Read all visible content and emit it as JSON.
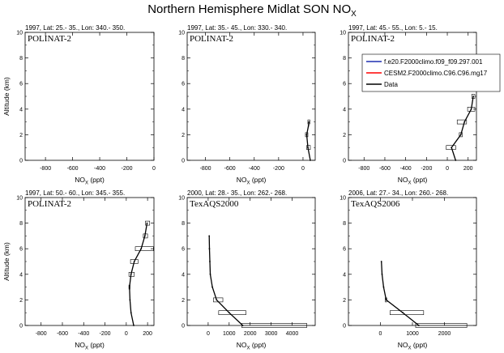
{
  "figure": {
    "title": "Northern Hemisphere Midlat SON NO",
    "title_sub": "X"
  },
  "legend": {
    "placement": "inside panel 3, upper right",
    "entries": [
      {
        "label": "f.e20.F2000climo.f09_f09.297.001",
        "color": "#1f2fb0"
      },
      {
        "label": "CESM2.F2000climo.C96.C96.mg17",
        "color": "#ff0000"
      },
      {
        "label": "Data",
        "color": "#000000"
      }
    ]
  },
  "chart_data": [
    {
      "type": "line",
      "title": "1997, Lat: 25.- 35., Lon: 340.- 350.",
      "campaign": "POLINAT-2",
      "xlabel": "NO",
      "xlabel_sub": "X",
      "xlabel_unit": " (ppt)",
      "ylabel": "Altitude (km)",
      "xlim": [
        -950,
        0
      ],
      "ylim": [
        0,
        10
      ],
      "xticks": [
        -800,
        -600,
        -400,
        -200,
        0
      ],
      "yticks": [
        0,
        2,
        4,
        6,
        8,
        10
      ],
      "series": [
        {
          "name": "Data",
          "color": "#000000",
          "x": [],
          "y": []
        }
      ],
      "boxes": []
    },
    {
      "type": "line",
      "title": "1997, Lat: 35.- 45., Lon: 330.- 340.",
      "campaign": "POLINAT-2",
      "xlabel": "NO",
      "xlabel_sub": "X",
      "xlabel_unit": " (ppt)",
      "ylabel": "",
      "xlim": [
        -950,
        100
      ],
      "ylim": [
        0,
        10
      ],
      "xticks": [
        -800,
        -600,
        -400,
        -200,
        0
      ],
      "yticks": [
        0,
        2,
        4,
        6,
        8,
        10
      ],
      "series": [
        {
          "name": "Data",
          "color": "#000000",
          "x": [
            60,
            40,
            30,
            45,
            48
          ],
          "y": [
            0,
            1,
            2,
            2.7,
            3
          ]
        }
      ],
      "boxes": [
        {
          "y": 1,
          "x1": 30,
          "x2": 60
        },
        {
          "y": 2,
          "x1": 20,
          "x2": 40
        },
        {
          "y": 3,
          "x1": 40,
          "x2": 56
        }
      ]
    },
    {
      "type": "line",
      "title": "1997, Lat: 45.- 55., Lon: 5.- 15.",
      "campaign": "POLINAT-2",
      "xlabel": "NO",
      "xlabel_sub": "X",
      "xlabel_unit": " (ppt)",
      "ylabel": "",
      "xlim": [
        -950,
        280
      ],
      "ylim": [
        0,
        10
      ],
      "xticks": [
        -800,
        -600,
        -400,
        -200,
        0,
        200
      ],
      "yticks": [
        0,
        2,
        4,
        6,
        8,
        10
      ],
      "series": [
        {
          "name": "Data",
          "color": "#000000",
          "x": [
            80,
            40,
            130,
            165,
            230,
            250
          ],
          "y": [
            0,
            1,
            2,
            3,
            4,
            5
          ]
        }
      ],
      "boxes": [
        {
          "y": 1,
          "x1": -10,
          "x2": 80
        },
        {
          "y": 2,
          "x1": 115,
          "x2": 145
        },
        {
          "y": 3,
          "x1": 95,
          "x2": 185
        },
        {
          "y": 4,
          "x1": 195,
          "x2": 265
        },
        {
          "y": 5,
          "x1": 235,
          "x2": 265
        }
      ]
    },
    {
      "type": "line",
      "title": "1997, Lat: 50.- 60., Lon: 345.- 355.",
      "campaign": "POLINAT-2",
      "xlabel": "NO",
      "xlabel_sub": "X",
      "xlabel_unit": " (ppt)",
      "ylabel": "Altitude (km)",
      "xlim": [
        -950,
        260
      ],
      "ylim": [
        0,
        10
      ],
      "xticks": [
        -800,
        -600,
        -400,
        -200,
        0,
        200
      ],
      "yticks": [
        0,
        2,
        4,
        6,
        8,
        10
      ],
      "series": [
        {
          "name": "Data",
          "color": "#000000",
          "x": [
            70,
            45,
            35,
            30,
            45,
            75,
            140,
            175,
            195
          ],
          "y": [
            0,
            1,
            2,
            3,
            4,
            5,
            6,
            7,
            8
          ]
        }
      ],
      "boxes": [
        {
          "y": 3,
          "x1": 25,
          "x2": 35
        },
        {
          "y": 4,
          "x1": 25,
          "x2": 75
        },
        {
          "y": 5,
          "x1": 40,
          "x2": 110
        },
        {
          "y": 6,
          "x1": 85,
          "x2": 255
        },
        {
          "y": 7,
          "x1": 160,
          "x2": 200
        },
        {
          "y": 8,
          "x1": 180,
          "x2": 220
        }
      ]
    },
    {
      "type": "line",
      "title": "2000, Lat: 28.- 35., Lon: 262.- 268.",
      "campaign": "TexAQS2000",
      "xlabel": "NO",
      "xlabel_sub": "X",
      "xlabel_unit": " (ppt)",
      "ylabel": "",
      "xlim": [
        -1000,
        5100
      ],
      "ylim": [
        0,
        10
      ],
      "xticks": [
        0,
        1000,
        2000,
        3000,
        4000
      ],
      "yticks": [
        0,
        2,
        4,
        6,
        8,
        10
      ],
      "series": [
        {
          "name": "Data",
          "color": "#000000",
          "x": [
            1650,
            1000,
            400,
            200,
            100,
            80,
            60,
            50
          ],
          "y": [
            0,
            1,
            2,
            3,
            4,
            5,
            6,
            7
          ]
        }
      ],
      "boxes": [
        {
          "y": 0,
          "x1": 1600,
          "x2": 4700
        },
        {
          "y": 1,
          "x1": 500,
          "x2": 1800
        },
        {
          "y": 2,
          "x1": 250,
          "x2": 700
        }
      ]
    },
    {
      "type": "line",
      "title": "2006, Lat: 27.- 34., Lon: 260.- 268.",
      "campaign": "TexAQS2006",
      "xlabel": "NO",
      "xlabel_sub": "X",
      "xlabel_unit": " (ppt)",
      "ylabel": "",
      "xlim": [
        -1000,
        3000
      ],
      "ylim": [
        0,
        10
      ],
      "xticks": [
        0,
        1000,
        2000
      ],
      "yticks": [
        0,
        2,
        4,
        6,
        8,
        10
      ],
      "series": [
        {
          "name": "Data",
          "color": "#000000",
          "x": [
            1200,
            700,
            180,
            100,
            50,
            30
          ],
          "y": [
            0,
            1,
            2,
            3,
            4,
            5
          ]
        }
      ],
      "boxes": [
        {
          "y": 0,
          "x1": 1100,
          "x2": 2700
        },
        {
          "y": 1,
          "x1": 300,
          "x2": 1350
        },
        {
          "y": 2,
          "x1": 150,
          "x2": 200
        }
      ]
    }
  ]
}
